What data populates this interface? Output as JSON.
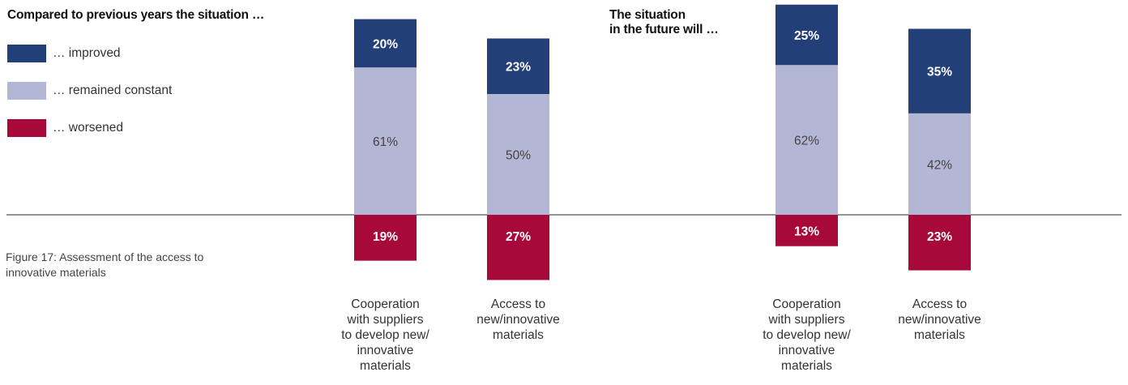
{
  "headings": {
    "past": [
      "Compared to previous years the situation …"
    ],
    "future": [
      "The situation",
      "in the future will …"
    ]
  },
  "legend": [
    {
      "key": "improved",
      "label": "… improved",
      "color": "#223f78"
    },
    {
      "key": "constant",
      "label": "… remained constant",
      "color": "#b3b7d5"
    },
    {
      "key": "worsened",
      "label": "… worsened",
      "color": "#a6093a"
    }
  ],
  "caption": "Figure 17: Assessment of the access to innovative materials",
  "chart_data": [
    {
      "type": "bar",
      "stacked": true,
      "baseline_series": "constant",
      "title": "Compared to previous years the situation …",
      "categories": [
        [
          "Cooperation",
          "with suppliers",
          "to develop new/",
          "innovative",
          "materials"
        ],
        [
          "Access to",
          "new/innovative",
          "materials"
        ]
      ],
      "series": [
        {
          "name": "… improved",
          "key": "improved",
          "values": [
            20,
            23
          ]
        },
        {
          "name": "… remained constant",
          "key": "constant",
          "values": [
            61,
            50
          ]
        },
        {
          "name": "… worsened",
          "key": "worsened",
          "values": [
            19,
            27
          ]
        }
      ],
      "unit": "%"
    },
    {
      "type": "bar",
      "stacked": true,
      "baseline_series": "constant",
      "title": "The situation in the future will …",
      "categories": [
        [
          "Cooperation",
          "with suppliers",
          "to develop new/",
          "innovative",
          "materials"
        ],
        [
          "Access to",
          "new/innovative",
          "materials"
        ]
      ],
      "series": [
        {
          "name": "… improved",
          "key": "improved",
          "values": [
            25,
            35
          ]
        },
        {
          "name": "… remained constant",
          "key": "constant",
          "values": [
            62,
            42
          ]
        },
        {
          "name": "… worsened",
          "key": "worsened",
          "values": [
            13,
            23
          ]
        }
      ],
      "unit": "%"
    }
  ]
}
